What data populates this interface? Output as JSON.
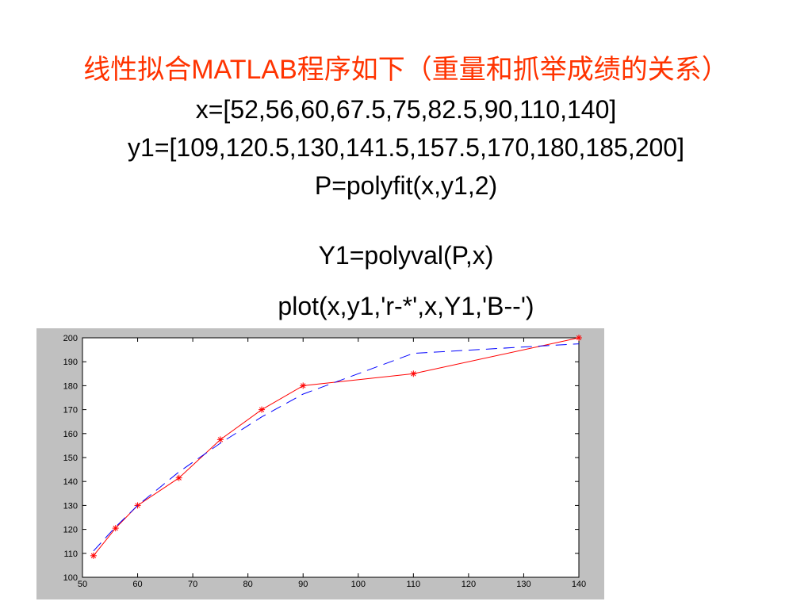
{
  "slide": {
    "title": "线性拟合MATLAB程序如下（重量和抓举成绩的关系）",
    "code_x": "x=[52,56,60,67.5,75,82.5,90,110,140]",
    "code_y1": "y1=[109,120.5,130,141.5,157.5,170,180,185,200]",
    "code_polyfit": "P=polyfit(x,y1,2)",
    "code_polyval": "Y1=polyval(P,x)",
    "code_plot": "plot(x,y1,'r-*',x,Y1,'B--')"
  },
  "chart_data": {
    "type": "line",
    "x": [
      52,
      56,
      60,
      67.5,
      75,
      82.5,
      90,
      110,
      140
    ],
    "series": [
      {
        "values": [
          109,
          120.5,
          130,
          141.5,
          157.5,
          170,
          180,
          185,
          200
        ],
        "color": "#ff0000",
        "line_style": "solid",
        "marker": "*"
      },
      {
        "values": [
          111,
          121,
          130,
          144,
          156,
          167,
          176.5,
          193.5,
          197.5
        ],
        "color": "#0000ff",
        "line_style": "dashed",
        "marker": "none"
      }
    ],
    "xlim": [
      50,
      140
    ],
    "ylim": [
      100,
      200
    ],
    "x_ticks": [
      50,
      60,
      70,
      80,
      90,
      100,
      110,
      120,
      130,
      140
    ],
    "y_ticks": [
      100,
      110,
      120,
      130,
      140,
      150,
      160,
      170,
      180,
      190,
      200
    ],
    "grid": false,
    "figure_background": "#c0c0c0",
    "axes_background": "#ffffff"
  }
}
